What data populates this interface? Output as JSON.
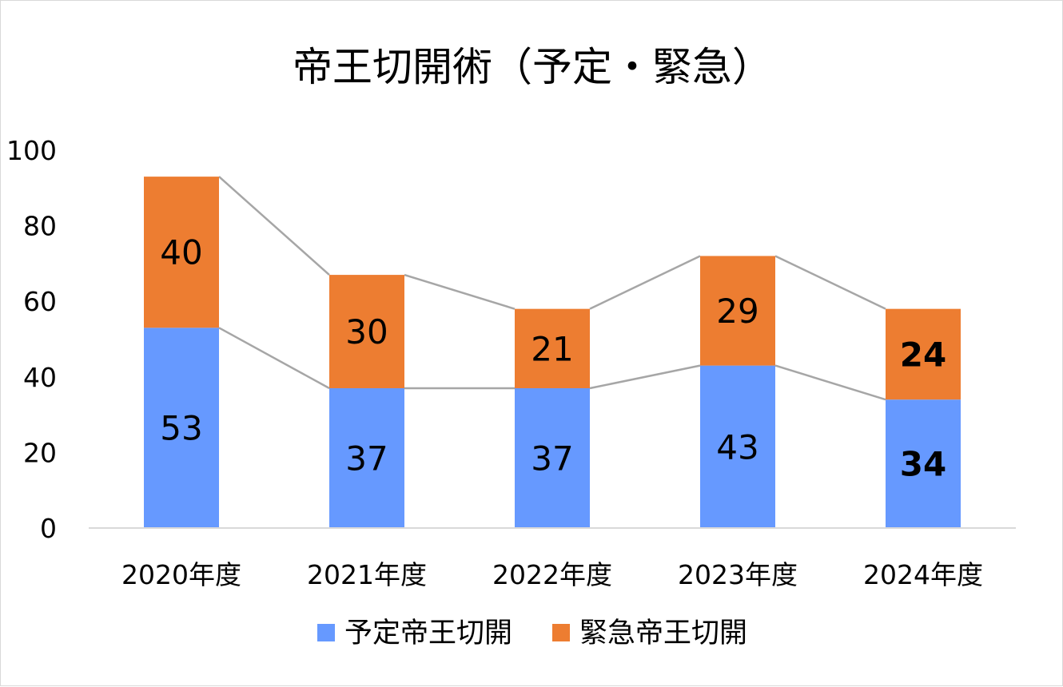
{
  "chart_data": {
    "type": "bar",
    "stacked": true,
    "title": "帝王切開術（予定・緊急）",
    "categories": [
      "2020年度",
      "2021年度",
      "2022年度",
      "2023年度",
      "2024年度"
    ],
    "series": [
      {
        "name": "予定帝王切開",
        "values": [
          53,
          37,
          37,
          43,
          34
        ],
        "color": "#6699ff"
      },
      {
        "name": "緊急帝王切開",
        "values": [
          40,
          30,
          21,
          29,
          24
        ],
        "color": "#ed7d31"
      }
    ],
    "ylim": [
      0,
      100
    ],
    "yticks": [
      0,
      20,
      40,
      60,
      80,
      100
    ],
    "bold_category_labels": [
      "2024年度"
    ],
    "series_lines": true,
    "series_line_color": "#a6a6a6",
    "grid": false,
    "legend_position": "bottom"
  }
}
